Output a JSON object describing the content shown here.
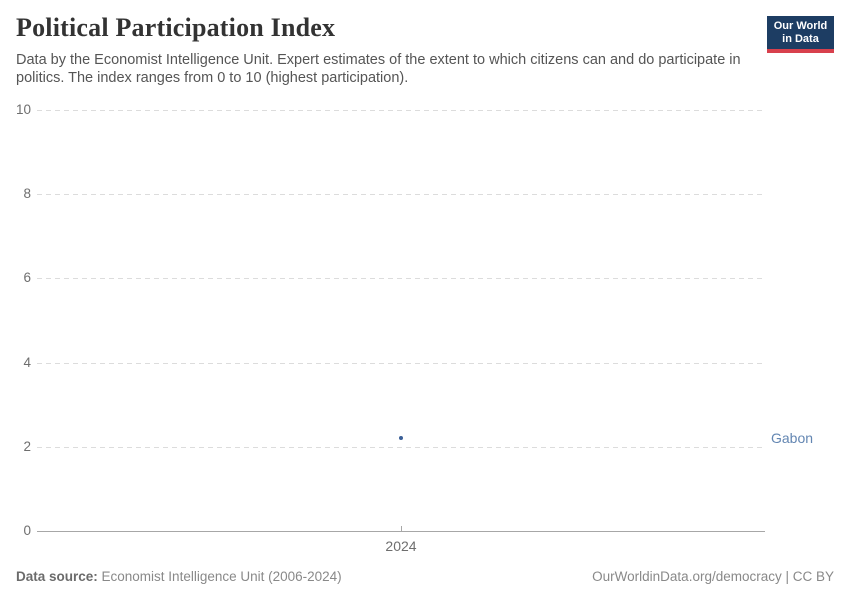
{
  "header": {
    "logo": {
      "line1": "Our World",
      "line2": "in Data",
      "bg_color": "#1d3d63",
      "accent_color": "#d8404d"
    }
  },
  "chart_data": {
    "type": "scatter",
    "title": "Political Participation Index",
    "subtitle": "Data by the Economist Intelligence Unit. Expert estimates of the extent to which citizens can and do participate in politics. The index ranges from 0 to 10 (highest participation).",
    "series": [
      {
        "name": "Gabon",
        "color": "#3b5f97",
        "label_color": "#6386b2",
        "points": [
          {
            "x": 2024,
            "y": 2.2
          }
        ]
      }
    ],
    "x_ticks": [
      {
        "label": "2024",
        "x": 2024
      }
    ],
    "y_ticks": [
      0,
      2,
      4,
      6,
      8,
      10
    ],
    "ylim": [
      0,
      10
    ],
    "xlabel": "",
    "ylabel": "",
    "grid": "horizontal-dashed",
    "legend_position": "right-of-point"
  },
  "footer": {
    "source_label": "Data source:",
    "source_text": " Economist Intelligence Unit (2006-2024)",
    "credit": "OurWorldinData.org/democracy | CC BY"
  }
}
